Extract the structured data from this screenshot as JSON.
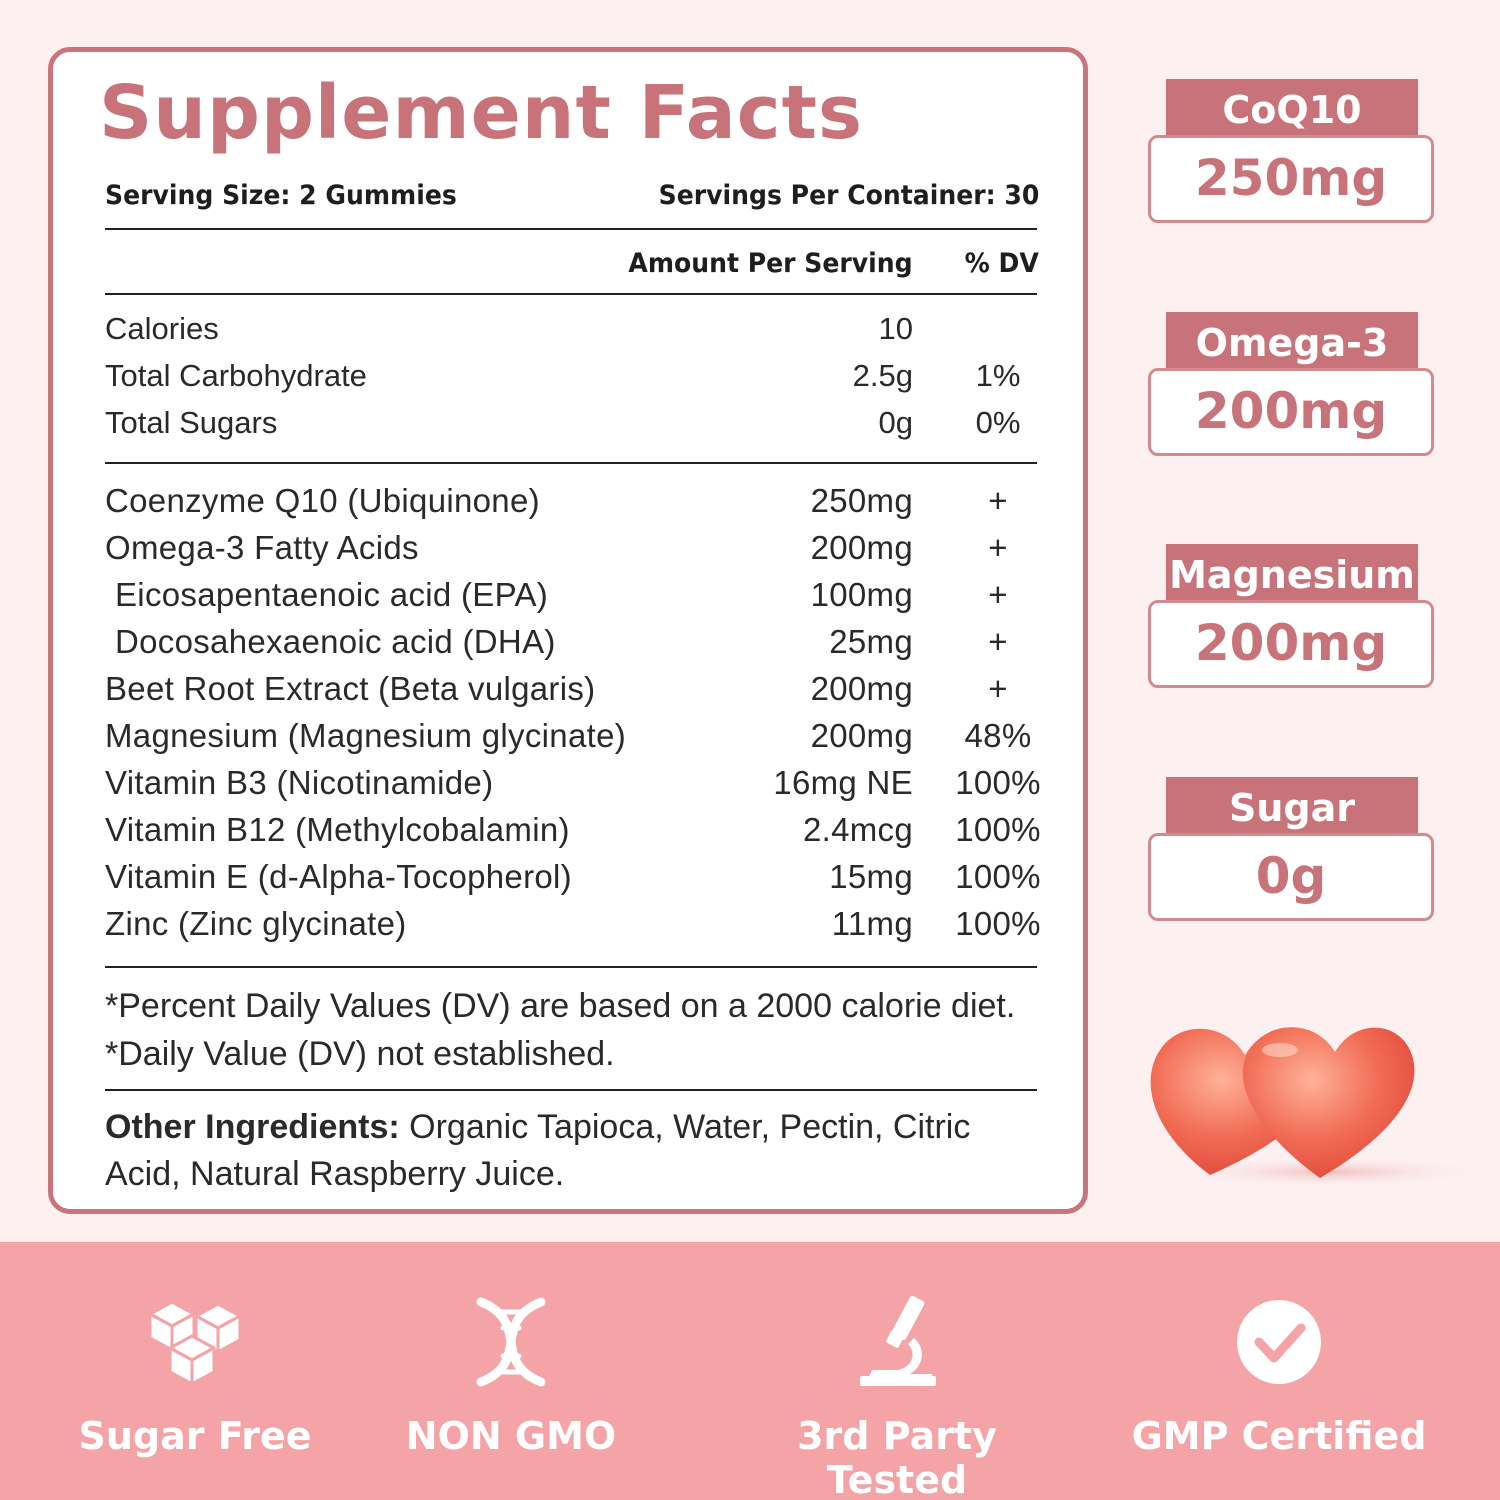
{
  "facts": {
    "title": "Supplement Facts",
    "serving_size": "Serving Size: 2 Gummies",
    "servings_per_container": "Servings Per Container: 30",
    "col_amount": "Amount Per Serving",
    "col_dv": "% DV",
    "basic": [
      {
        "label": "Calories",
        "amount": "10",
        "dv": ""
      },
      {
        "label": "Total Carbohydrate",
        "amount": "2.5g",
        "dv": "1%"
      },
      {
        "label": "Total Sugars",
        "amount": "0g",
        "dv": "0%"
      }
    ],
    "ingredients": [
      {
        "label": "Coenzyme Q10 (Ubiquinone)",
        "amount": "250mg",
        "dv": "+"
      },
      {
        "label": "Omega-3 Fatty Acids",
        "amount": "200mg",
        "dv": "+"
      },
      {
        "label": " Eicosapentaenoic acid (EPA)",
        "amount": "100mg",
        "dv": "+"
      },
      {
        "label": " Docosahexaenoic acid (DHA)",
        "amount": "25mg",
        "dv": "+"
      },
      {
        "label": "Beet Root Extract (Beta vulgaris)",
        "amount": "200mg",
        "dv": "+"
      },
      {
        "label": "Magnesium (Magnesium glycinate)",
        "amount": "200mg",
        "dv": "48%"
      },
      {
        "label": "Vitamin B3 (Nicotinamide)",
        "amount": "16mg NE",
        "dv": "100%"
      },
      {
        "label": "Vitamin B12 (Methylcobalamin)",
        "amount": "2.4mcg",
        "dv": "100%"
      },
      {
        "label": "Vitamin E (d-Alpha-Tocopherol)",
        "amount": "15mg",
        "dv": "100%"
      },
      {
        "label": "Zinc (Zinc glycinate)",
        "amount": "11mg",
        "dv": "100%"
      }
    ],
    "note_1": "*Percent Daily Values (DV) are based on a 2000 calorie diet.",
    "note_2": "*Daily Value (DV) not established.",
    "other_label": "Other Ingredients:",
    "other_text": " Organic Tapioca, Water, Pectin, Citric Acid, Natural Raspberry Juice."
  },
  "badges": [
    {
      "name": "CoQ10",
      "value": "250mg"
    },
    {
      "name": "Omega-3",
      "value": "200mg"
    },
    {
      "name": "Magnesium",
      "value": "200mg"
    },
    {
      "name": "Sugar",
      "value": "0g"
    }
  ],
  "features": [
    {
      "label": "Sugar Free",
      "icon": "sugar-cubes-icon"
    },
    {
      "label": "NON GMO",
      "icon": "dna-icon"
    },
    {
      "label": "3rd Party Tested",
      "icon": "microscope-icon"
    },
    {
      "label": "GMP Certified",
      "icon": "check-circle-icon"
    }
  ],
  "colors": {
    "accent": "#c8737a",
    "band": "#f4a3a6",
    "background": "#fdf0f1"
  }
}
